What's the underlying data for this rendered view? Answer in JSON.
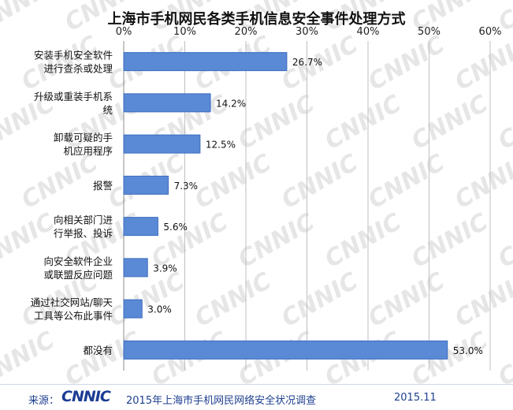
{
  "chart_data": {
    "type": "bar",
    "orientation": "horizontal",
    "title": "上海市手机网民各类手机信息安全事件处理方式",
    "categories": [
      [
        "安装手机安全软件",
        "进行查杀或处理"
      ],
      [
        "升级或重装手机系",
        "统"
      ],
      [
        "卸载可疑的手",
        "机应用程序"
      ],
      [
        "报警"
      ],
      [
        "向相关部门进",
        "行举报、投诉"
      ],
      [
        "向安全软件企业",
        "或联盟反应问题"
      ],
      [
        "通过社交网站/聊天",
        "工具等公布此事件"
      ],
      [
        "都没有"
      ]
    ],
    "values": [
      26.7,
      14.2,
      12.5,
      7.3,
      5.6,
      3.9,
      3.0,
      53.0
    ],
    "value_labels": [
      "26.7%",
      "14.2%",
      "12.5%",
      "7.3%",
      "5.6%",
      "3.9%",
      "3.0%",
      "53.0%"
    ],
    "xlim": [
      0,
      60
    ],
    "x_ticks": [
      0,
      10,
      20,
      30,
      40,
      50,
      60
    ],
    "x_tick_labels": [
      "0%",
      "10%",
      "20%",
      "30%",
      "40%",
      "50%",
      "60%"
    ],
    "axis_position": "top",
    "grid": true,
    "bar_color": "#5a8ad6",
    "bar_edge_color": "#3b6bbf"
  },
  "footer": {
    "source_label": "来源：",
    "logo_text": "CNNIC",
    "survey_title": "2015年上海市手机网民网络安全状况调查",
    "date": "2015.11"
  },
  "watermark_text": "CNNIC"
}
